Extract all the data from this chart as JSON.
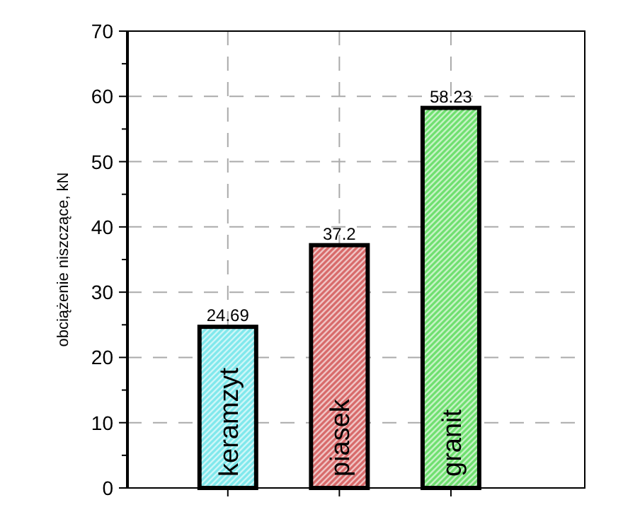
{
  "chart_data": {
    "type": "bar",
    "ylabel": "obciążenie niszczące, kN",
    "categories": [
      "keramzyt",
      "piasek",
      "granit"
    ],
    "values": [
      24.69,
      37.2,
      58.23
    ],
    "colors": [
      "#80e8ec",
      "#d86a6a",
      "#70e070"
    ],
    "ylim": [
      0,
      70
    ],
    "yticks": [
      0,
      {
        "value": 5,
        "label": null
      },
      10,
      {
        "value": 15,
        "label": null
      },
      20,
      {
        "value": 25,
        "label": null
      },
      30,
      {
        "value": 35,
        "label": null
      },
      40,
      {
        "value": 45,
        "label": null
      },
      50,
      {
        "value": 55,
        "label": null
      },
      60,
      {
        "value": 65,
        "label": null
      },
      70
    ],
    "grid": true,
    "data_labels": true
  }
}
